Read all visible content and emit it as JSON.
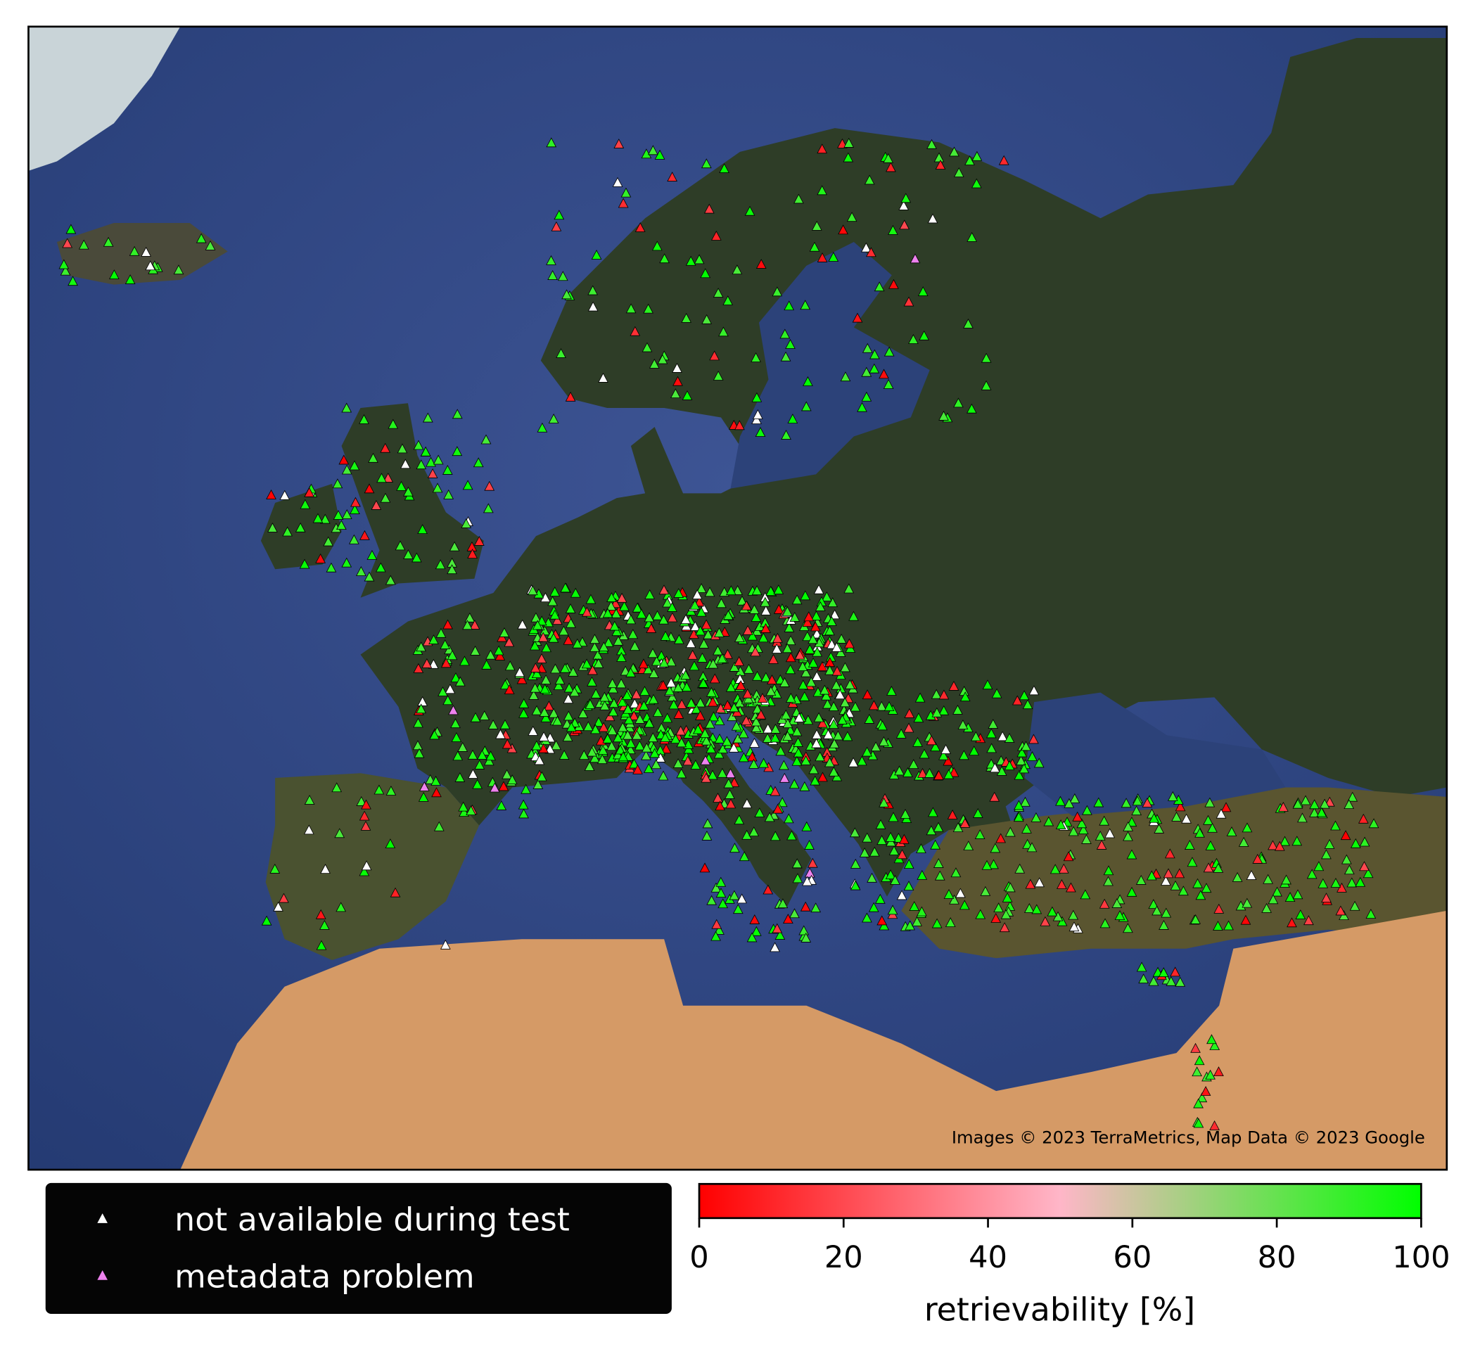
{
  "map": {
    "attribution": "Images © 2023 TerraMetrics, Map Data © 2023 Google",
    "legend": [
      {
        "label": "not available during test",
        "color": "#ffffff"
      },
      {
        "label": "metadata problem",
        "color": "#ee82ee"
      }
    ],
    "colorbar": {
      "label": "retrievability [%]",
      "lim": [
        0,
        100
      ],
      "ticks": [
        0,
        20,
        40,
        60,
        80,
        100
      ],
      "colors": [
        "#ff0000",
        "#ffb6c8",
        "#00ff00"
      ]
    }
  }
}
